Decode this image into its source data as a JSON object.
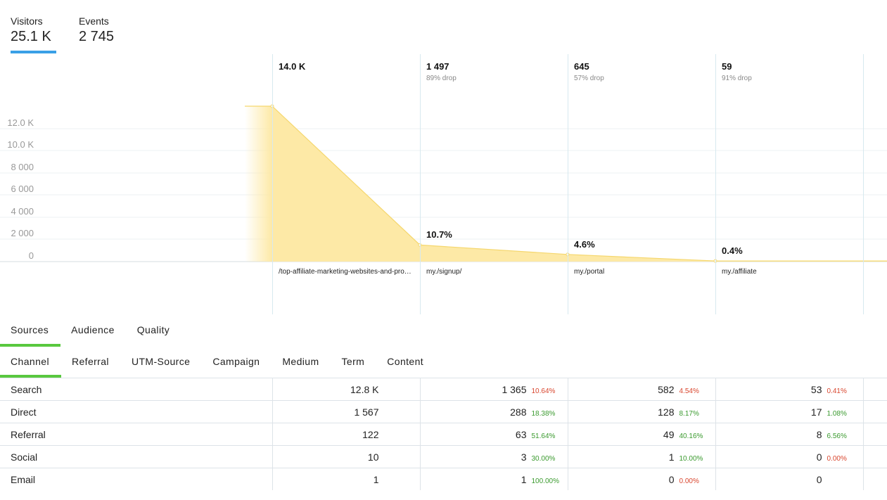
{
  "metrics": [
    {
      "label": "Visitors",
      "value": "25.1 K",
      "active": true
    },
    {
      "label": "Events",
      "value": "2 745",
      "active": false
    }
  ],
  "chart_data": {
    "type": "area",
    "y_ticks": [
      "12.0 K",
      "10.0 K",
      "8 000",
      "6 000",
      "4 000",
      "2 000",
      "0"
    ],
    "ylim": [
      0,
      14000
    ],
    "steps": [
      {
        "count_label": "14.0 K",
        "value": 14000,
        "drop": "",
        "conversion": "",
        "page": "/top-affiliate-marketing-websites-and-programs/"
      },
      {
        "count_label": "1 497",
        "value": 1497,
        "drop": "89% drop",
        "conversion": "10.7%",
        "page": "my./signup/"
      },
      {
        "count_label": "645",
        "value": 645,
        "drop": "57% drop",
        "conversion": "4.6%",
        "page": "my./portal"
      },
      {
        "count_label": "59",
        "value": 59,
        "drop": "91% drop",
        "conversion": "0.4%",
        "page": "my./affiliate"
      }
    ],
    "fill_color": "#fde9a6",
    "line_color": "#f5d76e"
  },
  "tabs_primary": [
    {
      "label": "Sources",
      "active": true
    },
    {
      "label": "Audience",
      "active": false
    },
    {
      "label": "Quality",
      "active": false
    }
  ],
  "tabs_secondary": [
    {
      "label": "Channel",
      "active": true
    },
    {
      "label": "Referral",
      "active": false
    },
    {
      "label": "UTM-Source",
      "active": false
    },
    {
      "label": "Campaign",
      "active": false
    },
    {
      "label": "Medium",
      "active": false
    },
    {
      "label": "Term",
      "active": false
    },
    {
      "label": "Content",
      "active": false
    }
  ],
  "table": {
    "rows": [
      {
        "channel": "Search",
        "step1": "12.8 K",
        "cells": [
          {
            "num": "1 365",
            "pct": "10.64%",
            "tone": "red"
          },
          {
            "num": "582",
            "pct": "4.54%",
            "tone": "red"
          },
          {
            "num": "53",
            "pct": "0.41%",
            "tone": "red"
          }
        ]
      },
      {
        "channel": "Direct",
        "step1": "1 567",
        "cells": [
          {
            "num": "288",
            "pct": "18.38%",
            "tone": "green"
          },
          {
            "num": "128",
            "pct": "8.17%",
            "tone": "green"
          },
          {
            "num": "17",
            "pct": "1.08%",
            "tone": "green"
          }
        ]
      },
      {
        "channel": "Referral",
        "step1": "122",
        "cells": [
          {
            "num": "63",
            "pct": "51.64%",
            "tone": "green"
          },
          {
            "num": "49",
            "pct": "40.16%",
            "tone": "green"
          },
          {
            "num": "8",
            "pct": "6.56%",
            "tone": "green"
          }
        ]
      },
      {
        "channel": "Social",
        "step1": "10",
        "cells": [
          {
            "num": "3",
            "pct": "30.00%",
            "tone": "green"
          },
          {
            "num": "1",
            "pct": "10.00%",
            "tone": "green"
          },
          {
            "num": "0",
            "pct": "0.00%",
            "tone": "red"
          }
        ]
      },
      {
        "channel": "Email",
        "step1": "1",
        "cells": [
          {
            "num": "1",
            "pct": "100.00%",
            "tone": "green"
          },
          {
            "num": "0",
            "pct": "0.00%",
            "tone": "red"
          },
          {
            "num": "0",
            "pct": "",
            "tone": "red"
          }
        ]
      }
    ]
  }
}
